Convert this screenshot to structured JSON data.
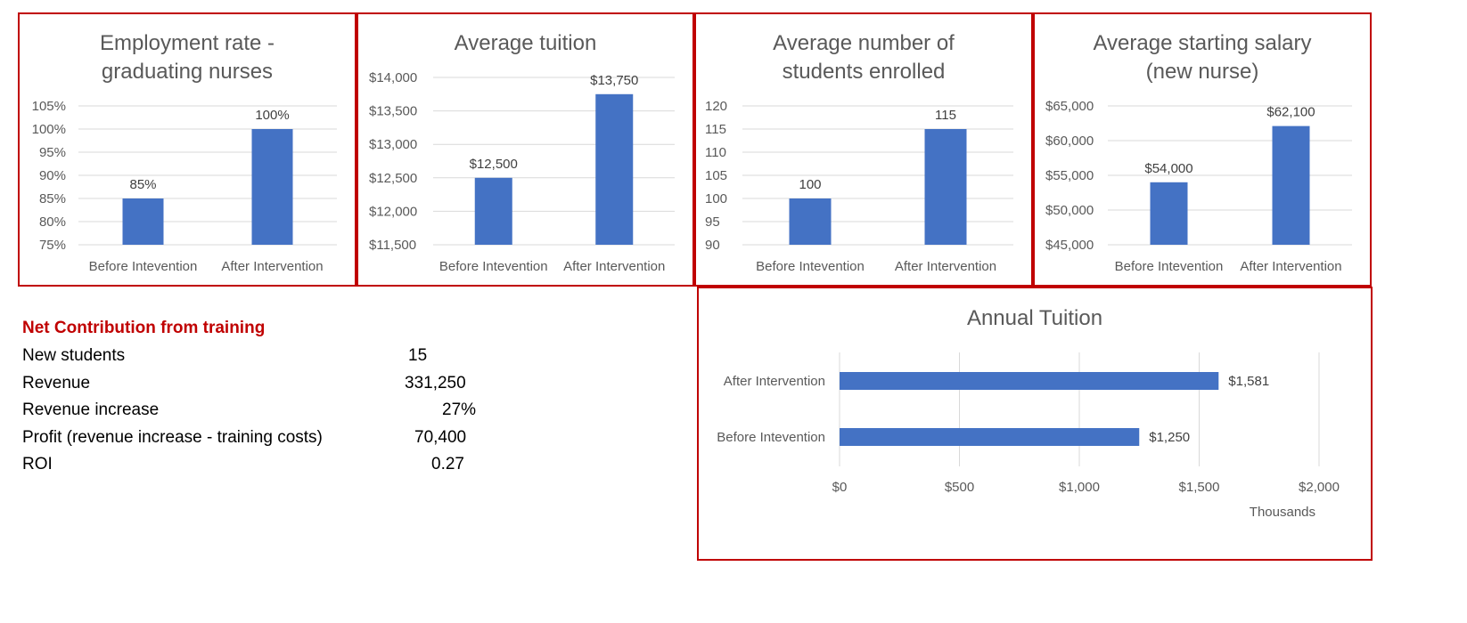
{
  "chart_data": [
    {
      "type": "bar",
      "title": "Employment rate - graduating nurses",
      "title_lines": [
        "Employment rate -",
        "graduating nurses"
      ],
      "categories": [
        "Before Intevention",
        "After Intervention"
      ],
      "values": [
        0.85,
        1.0
      ],
      "data_labels": [
        "85%",
        "100%"
      ],
      "ylim": [
        0.75,
        1.05
      ],
      "yticks": [
        0.75,
        0.8,
        0.85,
        0.9,
        0.95,
        1.0,
        1.05
      ],
      "ytick_labels": [
        "75%",
        "80%",
        "85%",
        "90%",
        "95%",
        "100%",
        "105%"
      ],
      "grid": true,
      "bar_color": "#4472c4"
    },
    {
      "type": "bar",
      "title": "Average tuition",
      "title_lines": [
        "Average tuition"
      ],
      "categories": [
        "Before Intevention",
        "After Intervention"
      ],
      "values": [
        12500,
        13750
      ],
      "data_labels": [
        "$12,500",
        "$13,750"
      ],
      "ylim": [
        11500,
        14000
      ],
      "yticks": [
        11500,
        12000,
        12500,
        13000,
        13500,
        14000
      ],
      "ytick_labels": [
        "$11,500",
        "$12,000",
        "$12,500",
        "$13,000",
        "$13,500",
        "$14,000"
      ],
      "grid": true,
      "bar_color": "#4472c4"
    },
    {
      "type": "bar",
      "title": "Average number of students enrolled",
      "title_lines": [
        "Average number of",
        "students enrolled"
      ],
      "categories": [
        "Before Intevention",
        "After Intervention"
      ],
      "values": [
        100,
        115
      ],
      "data_labels": [
        "100",
        "115"
      ],
      "ylim": [
        90,
        120
      ],
      "yticks": [
        90,
        95,
        100,
        105,
        110,
        115,
        120
      ],
      "ytick_labels": [
        "90",
        "95",
        "100",
        "105",
        "110",
        "115",
        "120"
      ],
      "grid": true,
      "bar_color": "#4472c4"
    },
    {
      "type": "bar",
      "title": "Average starting salary (new nurse)",
      "title_lines": [
        "Average starting salary",
        "(new nurse)"
      ],
      "categories": [
        "Before Intevention",
        "After Intervention"
      ],
      "values": [
        54000,
        62100
      ],
      "data_labels": [
        "$54,000",
        "$62,100"
      ],
      "ylim": [
        45000,
        65000
      ],
      "yticks": [
        45000,
        50000,
        55000,
        60000,
        65000
      ],
      "ytick_labels": [
        "$45,000",
        "$50,000",
        "$55,000",
        "$60,000",
        "$65,000"
      ],
      "grid": true,
      "bar_color": "#4472c4"
    },
    {
      "type": "bar",
      "orientation": "horizontal",
      "title": "Annual Tuition",
      "categories": [
        "After Intervention",
        "Before Intevention"
      ],
      "values": [
        1581,
        1250
      ],
      "data_labels": [
        "$1,581",
        "$1,250"
      ],
      "xlim": [
        0,
        2000
      ],
      "xticks": [
        0,
        500,
        1000,
        1500,
        2000
      ],
      "xtick_labels": [
        "$0",
        "$500",
        "$1,000",
        "$1,500",
        "$2,000"
      ],
      "x_unit_label": "Thousands",
      "grid": true,
      "bar_color": "#4472c4"
    }
  ],
  "net_contribution": {
    "heading": "Net Contribution from training",
    "rows": [
      {
        "label": "New students",
        "value": "15"
      },
      {
        "label": "Revenue",
        "value": "331,250"
      },
      {
        "label": "Revenue increase",
        "value": "27%"
      },
      {
        "label": "Profit (revenue increase - training costs)",
        "value": "70,400"
      },
      {
        "label": "ROI",
        "value": "0.27"
      }
    ]
  },
  "colors": {
    "border": "#c00000",
    "accent": "#4472c4",
    "heading": "#c00000"
  }
}
